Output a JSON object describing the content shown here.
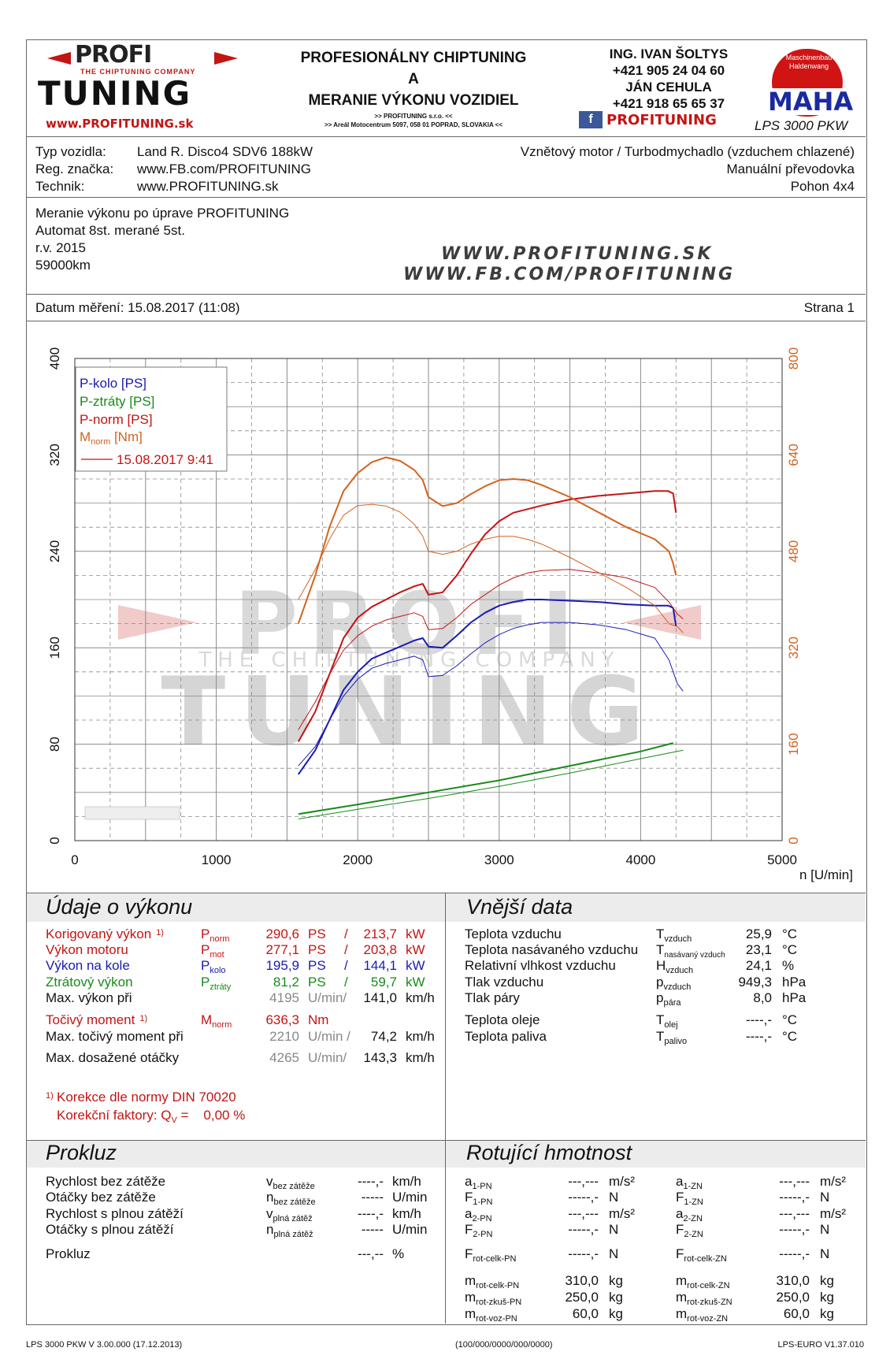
{
  "header": {
    "logo_top": "PROFI",
    "logo_tag": "THE CHIPTUNING COMPANY",
    "logo_bottom": "TUNING",
    "logo_url": "www.PROFITUNING.sk",
    "title1": "PROFESIONÁLNY CHIPTUNING",
    "title2": "A",
    "title3": "MERANIE VÝKONU VOZIDIEL",
    "company_line1": ">> PROFITUNING s.r.o. <<",
    "company_line2": ">> Areál Motocentrum 5097, 058 01 POPRAD, SLOVAKIA <<",
    "contact_name1": "ING. IVAN ŠOLTYS",
    "contact_phone1": "+421 905 24 04 60",
    "contact_name2": "JÁN CEHULA",
    "contact_phone2": "+421 918 65 65 37",
    "fb_label": "PROFITUNING",
    "maha_ring": "Maschinenbau Haldenwang",
    "maha_logo": "MAHA",
    "maha_model": "LPS 3000 PKW"
  },
  "vehicle": {
    "type_label": "Typ vozidla:",
    "type_value": "Land R. Disco4 SDV6 188kW",
    "reg_label": "Reg. značka:",
    "reg_value": "www.FB.com/PROFITUNING",
    "tech_label": "Technik:",
    "tech_value": "www.PROFITUNING.sk",
    "engine": "Vznětový motor / Turbodmychadlo (vzduchem chlazené)",
    "gearbox": "Manuální převodovka",
    "drive": "Pohon 4x4"
  },
  "notes": {
    "line1": "Meranie výkonu po úprave PROFITUNING",
    "line2": "Automat 8st. merané 5st.",
    "line3": "r.v. 2015",
    "line4": "59000km",
    "watermark_url1": "WWW.PROFITUNING.SK",
    "watermark_url2": "WWW.FB.COM/PROFITUNING"
  },
  "meta": {
    "date_label": "Datum měření: 15.08.2017 (11:08)",
    "page_label": "Strana 1"
  },
  "chart_data": {
    "type": "line",
    "xlabel": "n [U/min]",
    "xlim": [
      0,
      5000
    ],
    "xticks": [
      "0",
      "1000",
      "2000",
      "3000",
      "4000",
      "5000"
    ],
    "ylim_left": [
      0,
      400
    ],
    "yticks_left": [
      "0",
      "80",
      "160",
      "240",
      "320",
      "400"
    ],
    "ylim_right": [
      0,
      800
    ],
    "yticks_right": [
      "0",
      "160",
      "320",
      "480",
      "640",
      "800"
    ],
    "grid": true,
    "legend_position": "top-left",
    "legend": [
      {
        "label": "P-kolo [PS]",
        "color": "#1a1ab4"
      },
      {
        "label": "P-ztráty [PS]",
        "color": "#1a8a1a"
      },
      {
        "label": "P-norm [PS]",
        "color": "#c41414"
      },
      {
        "label": "M",
        "sub": "norm",
        "suffix": " [Nm]",
        "color": "#d2641e"
      }
    ],
    "legend_run": "15.08.2017 9:41",
    "series": [
      {
        "name": "P-kolo [PS]",
        "axis": "left",
        "color": "#1a1ab4",
        "width": 2,
        "x": [
          1580,
          1700,
          1800,
          1900,
          2000,
          2100,
          2200,
          2300,
          2400,
          2460,
          2500,
          2600,
          2700,
          2800,
          2900,
          3000,
          3100,
          3200,
          3300,
          3500,
          3700,
          3900,
          4100,
          4195,
          4230,
          4250
        ],
        "y": [
          55,
          75,
          100,
          125,
          140,
          151,
          156,
          161,
          166,
          168,
          161,
          160,
          170,
          181,
          189,
          195,
          198,
          200,
          200,
          199,
          198,
          196,
          195,
          195,
          193,
          178
        ]
      },
      {
        "name": "P-kolo [PS]",
        "axis": "left",
        "color": "#1a1ab4",
        "width": 1,
        "x": [
          1580,
          1700,
          1800,
          1900,
          2000,
          2100,
          2200,
          2300,
          2400,
          2460,
          2500,
          2600,
          2700,
          2800,
          2900,
          3000,
          3100,
          3200,
          3300,
          3500,
          3700,
          3900,
          4100,
          4200,
          4260,
          4300
        ],
        "y": [
          62,
          78,
          100,
          120,
          134,
          143,
          147,
          150,
          153,
          150,
          136,
          137,
          145,
          155,
          164,
          171,
          176,
          179,
          181,
          181,
          179,
          175,
          168,
          150,
          130,
          124
        ]
      },
      {
        "name": "P-ztráty [PS]",
        "axis": "left",
        "color": "#1a8a1a",
        "width": 2,
        "x": [
          1580,
          2000,
          2500,
          3000,
          3500,
          4000,
          4230
        ],
        "y": [
          22,
          30,
          40,
          50,
          62,
          74,
          81
        ]
      },
      {
        "name": "P-ztráty [PS]",
        "axis": "left",
        "color": "#1a8a1a",
        "width": 1,
        "x": [
          1580,
          2000,
          2500,
          3000,
          3500,
          4000,
          4300
        ],
        "y": [
          18,
          26,
          35,
          45,
          56,
          68,
          75
        ]
      },
      {
        "name": "P-norm [PS]",
        "axis": "left",
        "color": "#c41414",
        "width": 2,
        "x": [
          1580,
          1700,
          1800,
          1900,
          2000,
          2100,
          2200,
          2300,
          2400,
          2460,
          2500,
          2600,
          2700,
          2800,
          2900,
          3000,
          3100,
          3200,
          3300,
          3500,
          3700,
          3900,
          4100,
          4195,
          4230,
          4250
        ],
        "y": [
          82,
          107,
          138,
          168,
          185,
          194,
          200,
          206,
          211,
          213,
          204,
          206,
          220,
          238,
          254,
          265,
          272,
          275,
          278,
          283,
          286,
          288,
          290,
          290,
          288,
          272
        ]
      },
      {
        "name": "P-norm [PS]",
        "axis": "left",
        "color": "#c41414",
        "width": 1,
        "x": [
          1580,
          1700,
          1800,
          1900,
          2000,
          2100,
          2200,
          2300,
          2400,
          2460,
          2500,
          2600,
          2700,
          2800,
          2900,
          3000,
          3100,
          3200,
          3300,
          3500,
          3700,
          3900,
          4100,
          4200,
          4260,
          4300
        ],
        "y": [
          92,
          115,
          138,
          158,
          170,
          178,
          183,
          186,
          189,
          186,
          175,
          176,
          185,
          196,
          204,
          212,
          218,
          222,
          224,
          225,
          222,
          218,
          210,
          198,
          188,
          184
        ]
      },
      {
        "name": "M [Nm]",
        "axis": "right",
        "color": "#d2641e",
        "width": 2,
        "x": [
          1580,
          1700,
          1800,
          1900,
          2000,
          2100,
          2200,
          2300,
          2400,
          2460,
          2500,
          2600,
          2700,
          2800,
          2900,
          3000,
          3100,
          3200,
          3300,
          3500,
          3700,
          3900,
          4100,
          4200,
          4230,
          4250
        ],
        "y": [
          360,
          440,
          520,
          580,
          610,
          628,
          636,
          630,
          615,
          598,
          570,
          555,
          560,
          575,
          588,
          598,
          600,
          598,
          590,
          570,
          545,
          520,
          500,
          480,
          460,
          440
        ]
      },
      {
        "name": "M [Nm]",
        "axis": "right",
        "color": "#d2641e",
        "width": 1,
        "x": [
          1580,
          1700,
          1800,
          1900,
          2000,
          2100,
          2200,
          2300,
          2400,
          2460,
          2500,
          2600,
          2700,
          2800,
          2900,
          3000,
          3100,
          3200,
          3300,
          3500,
          3700,
          3900,
          4100,
          4200,
          4260,
          4300
        ],
        "y": [
          400,
          450,
          500,
          540,
          556,
          558,
          555,
          545,
          525,
          505,
          480,
          475,
          480,
          492,
          500,
          505,
          505,
          500,
          492,
          470,
          445,
          420,
          390,
          360,
          355,
          345
        ]
      }
    ],
    "watermark_text_top": "PROFI",
    "watermark_text_sub": "THE CHIPTUNING COMPANY",
    "watermark_text_bottom": "TUNING"
  },
  "perf": {
    "title": "Údaje o výkonu",
    "rows": [
      {
        "label": "Korigovaný výkon",
        "mark": "1)",
        "sym": "P",
        "sub": "norm",
        "v1": "290,6",
        "u1": "PS",
        "sep": "/",
        "v2": "213,7",
        "u2": "kW"
      },
      {
        "label": "Výkon motoru",
        "sym": "P",
        "sub": "mot",
        "v1": "277,1",
        "u1": "PS",
        "sep": "/",
        "v2": "203,8",
        "u2": "kW"
      },
      {
        "label": "Výkon na kole",
        "sym": "P",
        "sub": "kolo",
        "v1": "195,9",
        "u1": "PS",
        "sep": "/",
        "v2": "144,1",
        "u2": "kW"
      },
      {
        "label": "Ztrátový výkon",
        "sym": "P",
        "sub": "ztráty",
        "v1": "81,2",
        "u1": "PS",
        "sep": "/",
        "v2": "59,7",
        "u2": "kW"
      },
      {
        "label": "Max. výkon při",
        "v1": "4195",
        "u1": "U/min/",
        "v2": "141,0",
        "u2": "km/h"
      },
      {
        "label": "Točivý moment",
        "mark": "1)",
        "sym": "M",
        "sub": "norm",
        "v1": "636,3",
        "u1": "Nm"
      },
      {
        "label": "Max. točivý moment při",
        "v1": "2210",
        "u1": "U/min /",
        "v2": "74,2",
        "u2": "km/h"
      },
      {
        "label": "Max. dosažené otáčky",
        "v1": "4265",
        "u1": "U/min/",
        "v2": "143,3",
        "u2": "km/h"
      }
    ],
    "note_mark": "1)",
    "note1": "Korekce dle normy DIN 70020",
    "note2_label": "Korekční faktory: Q",
    "note2_sub": "V",
    "note2_value": " =    0,00 %"
  },
  "ext": {
    "title": "Vnější data",
    "rows": [
      {
        "label": "Teplota vzduchu",
        "sym": "T",
        "sub": "vzduch",
        "value": "25,9",
        "unit": "°C"
      },
      {
        "label": "Teplota nasávaného vzduchu",
        "sym": "T",
        "sub": "nasávaný vzduch",
        "value": "23,1",
        "unit": "°C"
      },
      {
        "label": "Relativní vlhkost vzduchu",
        "sym": "H",
        "sub": "vzduch",
        "value": "24,1",
        "unit": "%"
      },
      {
        "label": "Tlak vzduchu",
        "sym": "p",
        "sub": "vzduch",
        "value": "949,3",
        "unit": "hPa"
      },
      {
        "label": "Tlak páry",
        "sym": "p",
        "sub": "pára",
        "value": "8,0",
        "unit": "hPa"
      },
      {
        "label": "Teplota oleje",
        "sym": "T",
        "sub": "olej",
        "value": "----,-",
        "unit": "°C"
      },
      {
        "label": "Teplota paliva",
        "sym": "T",
        "sub": "palivo",
        "value": "----,-",
        "unit": "°C"
      }
    ]
  },
  "slip": {
    "title": "Prokluz",
    "rows": [
      {
        "label": "Rychlost bez zátěže",
        "sym": "v",
        "sub": "bez zátěže",
        "value": "----,-",
        "unit": "km/h"
      },
      {
        "label": "Otáčky bez zátěže",
        "sym": "n",
        "sub": "bez zátěže",
        "value": "-----",
        "unit": "U/min"
      },
      {
        "label": "Rychlost s plnou zátěží",
        "sym": "v",
        "sub": "plná zátěž",
        "value": "----,-",
        "unit": "km/h"
      },
      {
        "label": "Otáčky s plnou zátěží",
        "sym": "n",
        "sub": "plná zátěž",
        "value": "-----",
        "unit": "U/min"
      },
      {
        "label": "Prokluz",
        "value": "---,--",
        "unit": "%"
      }
    ]
  },
  "rot": {
    "title": "Rotující hmotnost",
    "left": [
      {
        "sym": "a",
        "sub": "1-PN",
        "value": "---,---",
        "unit": "m/s²"
      },
      {
        "sym": "F",
        "sub": "1-PN",
        "value": "-----,-",
        "unit": "N"
      },
      {
        "sym": "a",
        "sub": "2-PN",
        "value": "---,---",
        "unit": "m/s²"
      },
      {
        "sym": "F",
        "sub": "2-PN",
        "value": "-----,-",
        "unit": "N"
      },
      {
        "sym": "F",
        "sub": "rot-celk-PN",
        "value": "-----,-",
        "unit": "N"
      },
      {
        "sym": "m",
        "sub": "rot-celk-PN",
        "value": "310,0",
        "unit": "kg"
      },
      {
        "sym": "m",
        "sub": "rot-zkuš-PN",
        "value": "250,0",
        "unit": "kg"
      },
      {
        "sym": "m",
        "sub": "rot-voz-PN",
        "value": "60,0",
        "unit": "kg"
      }
    ],
    "right": [
      {
        "sym": "a",
        "sub": "1-ZN",
        "value": "---,---",
        "unit": "m/s²"
      },
      {
        "sym": "F",
        "sub": "1-ZN",
        "value": "-----,-",
        "unit": "N"
      },
      {
        "sym": "a",
        "sub": "2-ZN",
        "value": "---,---",
        "unit": "m/s²"
      },
      {
        "sym": "F",
        "sub": "2-ZN",
        "value": "-----,-",
        "unit": "N"
      },
      {
        "sym": "F",
        "sub": "rot-celk-ZN",
        "value": "-----,-",
        "unit": "N"
      },
      {
        "sym": "m",
        "sub": "rot-celk-ZN",
        "value": "310,0",
        "unit": "kg"
      },
      {
        "sym": "m",
        "sub": "rot-zkuš-ZN",
        "value": "250,0",
        "unit": "kg"
      },
      {
        "sym": "m",
        "sub": "rot-voz-ZN",
        "value": "60,0",
        "unit": "kg"
      }
    ]
  },
  "footer": {
    "left": "LPS 3000 PKW V 3.00.000 (17.12.2013)",
    "center": "(100/000/0000/000/0000)",
    "right": "LPS-EURO V1.37.010"
  },
  "colors": {
    "red": "#c41414",
    "blue": "#1a1ab4",
    "green": "#1a8a1a",
    "orange": "#d2641e",
    "grid": "#8a8a8a"
  }
}
